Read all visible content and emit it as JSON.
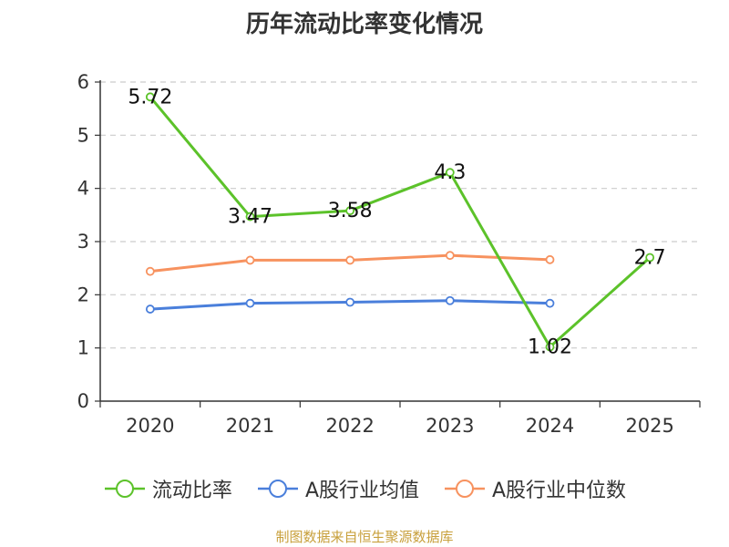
{
  "chart_data": {
    "type": "line",
    "title": "历年流动比率变化情况",
    "xlabel": "",
    "ylabel": "",
    "categories": [
      "2020",
      "2021",
      "2022",
      "2023",
      "2024",
      "2025"
    ],
    "ylim": [
      0,
      6
    ],
    "yticks": [
      "0",
      "1",
      "2",
      "3",
      "4",
      "5",
      "6"
    ],
    "grid": true,
    "legend_position": "bottom",
    "series": [
      {
        "name": "流动比率",
        "color": "#5cc22a",
        "values": [
          5.72,
          3.47,
          3.58,
          4.3,
          1.02,
          2.7
        ],
        "labels": [
          "5.72",
          "3.47",
          "3.58",
          "4.3",
          "1.02",
          "2.7"
        ]
      },
      {
        "name": "A股行业均值",
        "color": "#4a7fdb",
        "values": [
          1.73,
          1.84,
          1.86,
          1.89,
          1.84,
          null
        ]
      },
      {
        "name": "A股行业中位数",
        "color": "#f7925f",
        "values": [
          2.44,
          2.65,
          2.65,
          2.74,
          2.66,
          null
        ]
      }
    ]
  },
  "source": "制图数据来自恒生聚源数据库"
}
